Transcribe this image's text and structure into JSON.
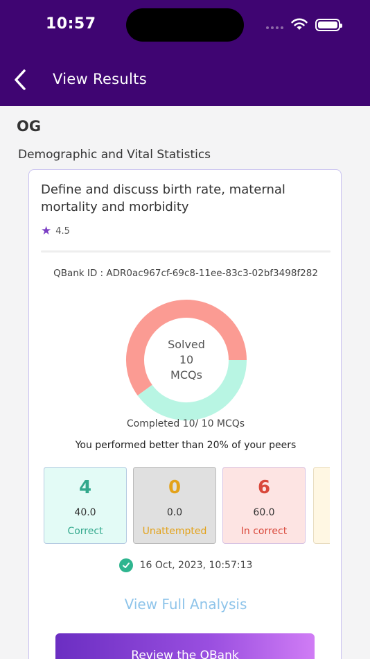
{
  "status_bar": {
    "time": "10:57"
  },
  "header": {
    "title": "View Results"
  },
  "subject": "OG",
  "chapter": "Demographic and Vital Statistics",
  "card": {
    "topic": "Define and discuss birth rate, maternal mortality and morbidity",
    "rating": "4.5",
    "qbank_id": "QBank ID : ADR0ac967cf-69c8-11ee-83c3-02bf3498f282",
    "donut": {
      "line1": "Solved",
      "line2": "10",
      "line3": "MCQs",
      "segments": [
        {
          "name": "In correct",
          "value": 6,
          "color": "#fb9b93"
        },
        {
          "name": "Correct",
          "value": 4,
          "color": "#b8f5e3"
        }
      ]
    },
    "completed": "Completed 10/ 10 MCQs",
    "peers": "You performed better than 20% of your peers",
    "stats": [
      {
        "count": "4",
        "percent": "40.0",
        "label": "Correct"
      },
      {
        "count": "0",
        "percent": "0.0",
        "label": "Unattempted"
      },
      {
        "count": "6",
        "percent": "60.0",
        "label": "In correct"
      }
    ],
    "date": "16 Oct, 2023, 10:57:13",
    "analysis_link": "View Full Analysis",
    "review_button": "Review the QBank"
  },
  "colors": {
    "header_bg": "#3f0572",
    "accent": "#7b3fc4",
    "correct": "#32a88c",
    "unattempted": "#e3a21a",
    "incorrect": "#d9483b",
    "link": "#8ec4ea"
  }
}
